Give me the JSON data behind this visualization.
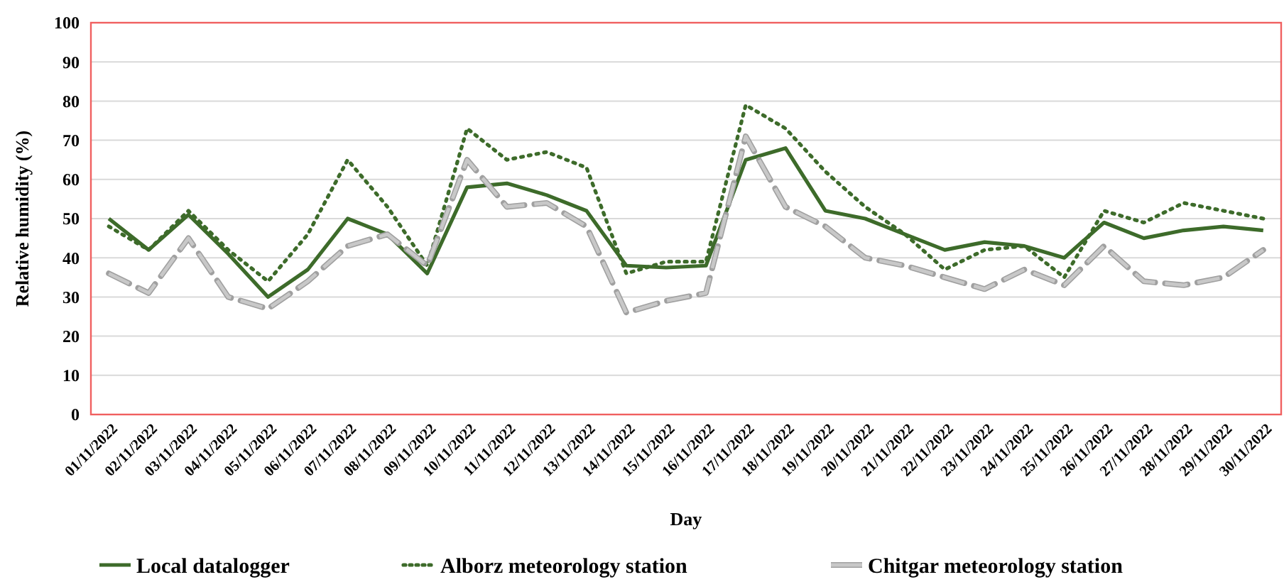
{
  "chart_data": {
    "type": "line",
    "xlabel": "Day",
    "ylabel": "Relative humidity (%)",
    "categories": [
      "01/11/2022",
      "02/11/2022",
      "03/11/2022",
      "04/11/2022",
      "05/11/2022",
      "06/11/2022",
      "07/11/2022",
      "08/11/2022",
      "09/11/2022",
      "10/11/2022",
      "11/11/2022",
      "12/11/2022",
      "13/11/2022",
      "14/11/2022",
      "15/11/2022",
      "16/11/2022",
      "17/11/2022",
      "18/11/2022",
      "19/11/2022",
      "20/11/2022",
      "21/11/2022",
      "22/11/2022",
      "23/11/2022",
      "24/11/2022",
      "25/11/2022",
      "26/11/2022",
      "27/11/2022",
      "28/11/2022",
      "29/11/2022",
      "30/11/2022"
    ],
    "series": [
      {
        "name": "Local datalogger",
        "color": "#3d6b2a",
        "line_style": "solid",
        "values": [
          50,
          42,
          51,
          41,
          30,
          37,
          50,
          46,
          36,
          58,
          59,
          56,
          52,
          38,
          37.5,
          38,
          65,
          68,
          52,
          50,
          46,
          42,
          44,
          43,
          40,
          49,
          45,
          47,
          48,
          47
        ]
      },
      {
        "name": "Alborz meteorology station",
        "color": "#3d6b2a",
        "line_style": "dotted",
        "values": [
          48,
          42,
          52,
          42,
          34,
          46,
          65,
          53,
          38,
          73,
          65,
          67,
          63,
          36,
          39,
          39,
          79,
          73,
          62,
          53,
          46,
          37,
          42,
          43,
          35,
          52,
          49,
          54,
          52,
          50
        ]
      },
      {
        "name": "Chitgar meteorology station",
        "color": "#c8c8c8",
        "line_style": "dashed",
        "values": [
          36,
          31,
          45,
          30,
          27,
          34,
          43,
          46,
          38,
          65,
          53,
          54,
          48,
          26,
          29,
          31,
          71,
          53,
          48,
          40,
          38,
          35,
          32,
          37,
          33,
          43,
          34,
          33,
          35,
          42
        ]
      }
    ],
    "ylim": [
      0,
      100
    ],
    "yticks": [
      0,
      10,
      20,
      30,
      40,
      50,
      60,
      70,
      80,
      90,
      100
    ],
    "grid": "y",
    "legend": "bottom",
    "marker": "none"
  }
}
